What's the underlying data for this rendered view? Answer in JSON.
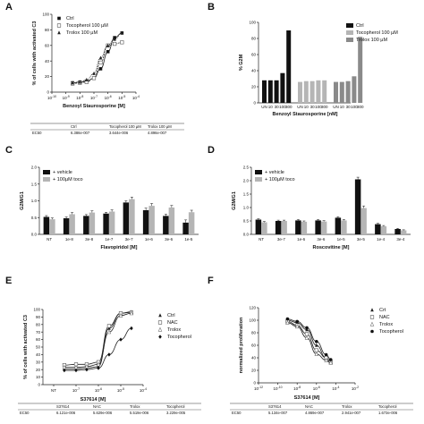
{
  "panels": {
    "A": {
      "letter": "A"
    },
    "B": {
      "letter": "B"
    },
    "C": {
      "letter": "C"
    },
    "D": {
      "letter": "D"
    },
    "E": {
      "letter": "E"
    },
    "F": {
      "letter": "F"
    }
  },
  "chart_data": [
    {
      "id": "A",
      "type": "scatter",
      "xscale": "log",
      "xlim": [
        1e-10,
        0.0001
      ],
      "ylim": [
        0,
        100
      ],
      "xticks": [
        "10-10",
        "10-9",
        "10-8",
        "10-7",
        "10-6",
        "10-5",
        "10-4"
      ],
      "yticks": [
        "0",
        "20",
        "40",
        "60",
        "80",
        "100"
      ],
      "xlabel": "Benzoyl Staurosporine [M]",
      "ylabel": "% of cells with activated C3",
      "legend": [
        "Ctrl",
        "Tocopherol 100 µM",
        "Trolox 100 µM"
      ],
      "series": [
        {
          "name": "Ctrl",
          "marker": "square",
          "x": [
            3e-09,
            1e-08,
            3e-08,
            1e-07,
            3e-07,
            1e-06,
            3e-06,
            1e-05
          ],
          "y": [
            12,
            13,
            14,
            18,
            30,
            52,
            70,
            76
          ]
        },
        {
          "name": "Tocopherol 100 µM",
          "marker": "square-open",
          "x": [
            3e-09,
            1e-08,
            3e-08,
            1e-07,
            3e-07,
            1e-06,
            3e-06,
            1e-05
          ],
          "y": [
            11,
            12,
            13,
            18,
            38,
            60,
            62,
            64
          ]
        },
        {
          "name": "Trolox 100 µM",
          "marker": "triangle",
          "x": [
            3e-09,
            1e-08,
            3e-08,
            1e-07,
            3e-07,
            1e-06,
            3e-06,
            1e-05
          ],
          "y": [
            12,
            13,
            16,
            24,
            44,
            60,
            68,
            76
          ]
        }
      ],
      "ec50_table": {
        "headers": [
          "",
          "Ctrl",
          "Tocopherol 100 µM",
          "Trolox 100 µM"
        ],
        "row": [
          "EC50",
          "6.386e-007",
          "3.644e-006",
          "4.896e-007"
        ]
      }
    },
    {
      "id": "B",
      "type": "bar",
      "ylim": [
        0,
        100
      ],
      "yticks": [
        "0",
        "20",
        "40",
        "60",
        "80",
        "100"
      ],
      "ylabel": "% G2M",
      "xlabel": "Benzoyl Staurosporine [nM]",
      "legend": [
        "Ctrl",
        "Tocopherol 100 µM",
        "Trolox 100 µM"
      ],
      "categories": [
        "UN",
        "10",
        "30",
        "100",
        "300",
        "UN",
        "10",
        "30",
        "100",
        "300",
        "UN",
        "10",
        "30",
        "100",
        "300"
      ],
      "groups": [
        {
          "name": "Ctrl",
          "color": "#111111",
          "values": [
            28,
            28,
            28,
            37,
            90
          ]
        },
        {
          "name": "Tocopherol 100 µM",
          "color": "#b5b5b5",
          "values": [
            26,
            27,
            27,
            28,
            28
          ]
        },
        {
          "name": "Trolox 100 µM",
          "color": "#8a8a8a",
          "values": [
            26,
            26,
            27,
            33,
            82
          ]
        }
      ]
    },
    {
      "id": "C",
      "type": "bar",
      "ylim": [
        0,
        2.0
      ],
      "yticks": [
        "0.0",
        "0.5",
        "1.0",
        "1.5",
        "2.0"
      ],
      "ylabel": "G2M/G1",
      "xlabel": "Flavopiridol [M]",
      "legend": [
        "+ vehicle",
        "+ 100µM toco"
      ],
      "categories": [
        "NT",
        "1e-8",
        "3e-8",
        "1e-7",
        "3e-7",
        "1e-6",
        "3e-6",
        "1e-5"
      ],
      "series": [
        {
          "name": "+ vehicle",
          "color": "#111111",
          "values": [
            0.52,
            0.48,
            0.55,
            0.62,
            0.95,
            0.72,
            0.55,
            0.35
          ],
          "err": [
            0.04,
            0.04,
            0.04,
            0.04,
            0.05,
            0.06,
            0.05,
            0.08
          ]
        },
        {
          "name": "+ 100µM toco",
          "color": "#b5b5b5",
          "values": [
            0.45,
            0.6,
            0.65,
            0.68,
            1.05,
            0.85,
            0.8,
            0.66
          ],
          "err": [
            0.04,
            0.05,
            0.05,
            0.05,
            0.06,
            0.07,
            0.06,
            0.06
          ]
        }
      ]
    },
    {
      "id": "D",
      "type": "bar",
      "ylim": [
        0,
        2.5
      ],
      "yticks": [
        "0.0",
        "0.5",
        "1.0",
        "1.5",
        "2.0",
        "2.5"
      ],
      "ylabel": "G2M/G1",
      "xlabel": "Roscovitine [M]",
      "legend": [
        "+ vehicle",
        "+ 100µM toco"
      ],
      "categories": [
        "NT",
        "3e-7",
        "1e-6",
        "3e-6",
        "1e-5",
        "3e-5",
        "1e-4",
        "3e-4"
      ],
      "series": [
        {
          "name": "+ vehicle",
          "color": "#111111",
          "values": [
            0.55,
            0.5,
            0.52,
            0.52,
            0.62,
            2.05,
            0.38,
            0.2
          ],
          "err": [
            0.03,
            0.03,
            0.03,
            0.03,
            0.04,
            0.08,
            0.03,
            0.02
          ]
        },
        {
          "name": "+ 100µM toco",
          "color": "#b5b5b5",
          "values": [
            0.45,
            0.5,
            0.47,
            0.48,
            0.52,
            0.98,
            0.3,
            0.15
          ],
          "err": [
            0.03,
            0.03,
            0.03,
            0.03,
            0.03,
            0.08,
            0.03,
            0.02
          ]
        }
      ]
    },
    {
      "id": "E",
      "type": "scatter",
      "xscale": "log",
      "xlim": [
        1e-08,
        0.0001
      ],
      "ylim": [
        0,
        100
      ],
      "xticks": [
        "NT",
        "10-7",
        "10-6",
        "10-5",
        "10-4"
      ],
      "yticks": [
        "0",
        "10",
        "20",
        "30",
        "40",
        "50",
        "60",
        "70",
        "80",
        "90",
        "100"
      ],
      "xlabel": "S37614 [M]",
      "ylabel": "% of cells with activated C3",
      "legend": [
        "Ctrl",
        "NAC",
        "Trolox",
        "Tocopherol"
      ],
      "series": [
        {
          "name": "Ctrl",
          "marker": "triangle",
          "x": [
            3e-08,
            1e-07,
            3e-07,
            1e-06,
            3e-06,
            1e-05,
            3e-05
          ],
          "y": [
            21,
            21,
            22,
            24,
            75,
            95,
            97
          ]
        },
        {
          "name": "NAC",
          "marker": "square-open",
          "x": [
            3e-08,
            1e-07,
            3e-07,
            1e-06,
            3e-06,
            1e-05,
            3e-05
          ],
          "y": [
            26,
            27,
            27,
            30,
            78,
            95,
            96
          ]
        },
        {
          "name": "Trolox",
          "marker": "triangle-open",
          "x": [
            3e-08,
            1e-07,
            3e-07,
            1e-06,
            3e-06,
            1e-05,
            3e-05
          ],
          "y": [
            23,
            23,
            24,
            27,
            70,
            92,
            95
          ]
        },
        {
          "name": "Tocopherol",
          "marker": "diamond",
          "x": [
            3e-08,
            1e-07,
            3e-07,
            1e-06,
            3e-06,
            1e-05,
            3e-05
          ],
          "y": [
            19,
            19,
            20,
            22,
            40,
            60,
            75
          ]
        }
      ],
      "ec50_table": {
        "headers": [
          "",
          "S37614",
          "NAC",
          "Trolox",
          "Tocopherol"
        ],
        "row": [
          "EC50",
          "6.121e-006",
          "5.629e-006",
          "5.519e-006",
          "3.229e-005"
        ]
      }
    },
    {
      "id": "F",
      "type": "scatter",
      "xscale": "log",
      "xlim": [
        1e-12,
        0.01
      ],
      "ylim": [
        0,
        120
      ],
      "xticks": [
        "10-12",
        "10-10",
        "10-8",
        "10-6",
        "10-4",
        "10-2"
      ],
      "yticks": [
        "0",
        "20",
        "40",
        "60",
        "80",
        "100",
        "120"
      ],
      "xlabel": "S37614 [M]",
      "ylabel": "normalized proliferation",
      "legend": [
        "Crt",
        "NAC",
        "Trolox",
        "Tocopherol"
      ],
      "series": [
        {
          "name": "Crt",
          "marker": "triangle",
          "x": [
            1e-09,
            1e-08,
            1e-07,
            1e-06,
            1e-05,
            3e-05
          ],
          "y": [
            100,
            96,
            85,
            60,
            40,
            34
          ]
        },
        {
          "name": "NAC",
          "marker": "square-open",
          "x": [
            1e-09,
            1e-08,
            1e-07,
            1e-06,
            1e-05,
            3e-05
          ],
          "y": [
            98,
            92,
            78,
            52,
            40,
            33
          ]
        },
        {
          "name": "Trolox",
          "marker": "triangle-open",
          "x": [
            1e-09,
            1e-08,
            1e-07,
            1e-06,
            1e-05,
            3e-05
          ],
          "y": [
            96,
            90,
            72,
            46,
            36,
            32
          ]
        },
        {
          "name": "Tocopherol",
          "marker": "circle",
          "x": [
            1e-09,
            1e-08,
            1e-07,
            1e-06,
            1e-05,
            3e-05
          ],
          "y": [
            102,
            98,
            88,
            66,
            45,
            37
          ]
        }
      ],
      "ec50_table": {
        "headers": [
          "",
          "S37614",
          "NAC",
          "Trolox",
          "Tocopherol"
        ],
        "row": [
          "EC50",
          "5.134e-007",
          "4.869e-007",
          "2.941e-007",
          "1.673e-006"
        ]
      }
    }
  ]
}
